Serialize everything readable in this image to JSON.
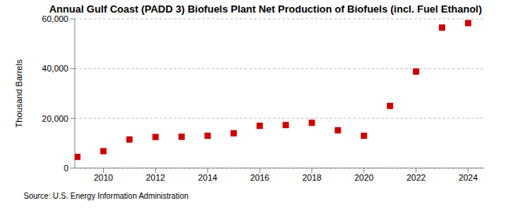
{
  "chart_data": {
    "type": "scatter",
    "title": "Annual Gulf Coast (PADD 3) Biofuels Plant Net Production of Biofuels (incl. Fuel Ethanol)",
    "y_label": "Thousand Barrels",
    "source": "Source: U.S. Energy Information Administration",
    "x": [
      2009,
      2010,
      2011,
      2012,
      2013,
      2014,
      2015,
      2016,
      2017,
      2018,
      2019,
      2020,
      2021,
      2022,
      2023,
      2024
    ],
    "values": [
      4500,
      6800,
      11500,
      12500,
      12600,
      13000,
      14000,
      17000,
      17300,
      18200,
      15200,
      13000,
      25000,
      38800,
      56500,
      58300
    ],
    "color": "#cc0000",
    "marker": "square",
    "xlim": [
      2008.9,
      2024.6
    ],
    "xticks": [
      2010,
      2012,
      2014,
      2016,
      2018,
      2020,
      2022,
      2024
    ],
    "ylim": [
      0,
      60000
    ],
    "yticks": [
      0,
      {
        "value": 20000,
        "label": "20,000"
      },
      {
        "value": 40000,
        "label": "40,000"
      },
      {
        "value": 60000,
        "label": "60,000"
      }
    ],
    "grid": true
  }
}
